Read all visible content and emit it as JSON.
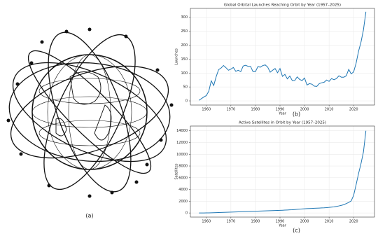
{
  "illustration": {
    "label": "(a)"
  },
  "chart_data": [
    {
      "type": "line",
      "title": "Global Orbital Launches Reaching Orbit by Year (1957–2025)",
      "x_label": "Year",
      "y_label": "Launches",
      "panel_label": "(b)",
      "color": "#1f77b4",
      "grid": true,
      "x": [
        1957,
        1958,
        1959,
        1960,
        1961,
        1962,
        1963,
        1964,
        1965,
        1966,
        1967,
        1968,
        1969,
        1970,
        1971,
        1972,
        1973,
        1974,
        1975,
        1976,
        1977,
        1978,
        1979,
        1980,
        1981,
        1982,
        1983,
        1984,
        1985,
        1986,
        1987,
        1988,
        1989,
        1990,
        1991,
        1992,
        1993,
        1994,
        1995,
        1996,
        1997,
        1998,
        1999,
        2000,
        2001,
        2002,
        2003,
        2004,
        2005,
        2006,
        2007,
        2008,
        2009,
        2010,
        2011,
        2012,
        2013,
        2014,
        2015,
        2016,
        2017,
        2018,
        2019,
        2020,
        2021,
        2022,
        2023,
        2024,
        2025
      ],
      "values": [
        2,
        8,
        14,
        19,
        35,
        72,
        55,
        87,
        112,
        118,
        127,
        119,
        110,
        114,
        120,
        106,
        110,
        105,
        125,
        128,
        124,
        124,
        105,
        105,
        123,
        121,
        127,
        129,
        121,
        103,
        110,
        116,
        101,
        116,
        88,
        95,
        79,
        89,
        73,
        73,
        86,
        77,
        73,
        82,
        57,
        62,
        60,
        53,
        52,
        62,
        65,
        67,
        75,
        70,
        80,
        76,
        80,
        90,
        85,
        85,
        90,
        113,
        97,
        104,
        135,
        178,
        211,
        255,
        320
      ],
      "xlim": [
        1953.5,
        2028.5
      ],
      "xticks": [
        1960,
        1970,
        1980,
        1990,
        2000,
        2010,
        2020
      ],
      "ylim": [
        -15,
        332
      ],
      "yticks": [
        0,
        50,
        100,
        150,
        200,
        250,
        300
      ]
    },
    {
      "type": "line",
      "title": "Active Satellites in Orbit by Year (1957–2025)",
      "x_label": "Year",
      "y_label": "Satellites",
      "panel_label": "(c)",
      "color": "#1f77b4",
      "grid": true,
      "x": [
        1957,
        1958,
        1959,
        1960,
        1961,
        1962,
        1963,
        1964,
        1965,
        1966,
        1967,
        1968,
        1969,
        1970,
        1971,
        1972,
        1973,
        1974,
        1975,
        1976,
        1977,
        1978,
        1979,
        1980,
        1981,
        1982,
        1983,
        1984,
        1985,
        1986,
        1987,
        1988,
        1989,
        1990,
        1991,
        1992,
        1993,
        1994,
        1995,
        1996,
        1997,
        1998,
        1999,
        2000,
        2001,
        2002,
        2003,
        2004,
        2005,
        2006,
        2007,
        2008,
        2009,
        2010,
        2011,
        2012,
        2013,
        2014,
        2015,
        2016,
        2017,
        2018,
        2019,
        2020,
        2021,
        2022,
        2023,
        2024,
        2025
      ],
      "values": [
        1,
        3,
        6,
        10,
        20,
        30,
        45,
        60,
        75,
        90,
        105,
        120,
        135,
        150,
        165,
        180,
        195,
        210,
        225,
        240,
        255,
        270,
        285,
        300,
        315,
        330,
        345,
        360,
        375,
        390,
        405,
        420,
        435,
        450,
        470,
        490,
        510,
        530,
        550,
        580,
        620,
        660,
        690,
        720,
        740,
        760,
        780,
        800,
        820,
        840,
        860,
        880,
        910,
        950,
        1000,
        1050,
        1120,
        1200,
        1300,
        1420,
        1600,
        1800,
        2050,
        3000,
        4800,
        6700,
        8400,
        10400,
        14000
      ],
      "xlim": [
        1953.5,
        2028.5
      ],
      "xticks": [
        1960,
        1970,
        1980,
        1990,
        2000,
        2010,
        2020
      ],
      "ylim": [
        -700,
        14800
      ],
      "yticks": [
        0,
        2000,
        4000,
        6000,
        8000,
        10000,
        12000,
        14000
      ]
    }
  ]
}
